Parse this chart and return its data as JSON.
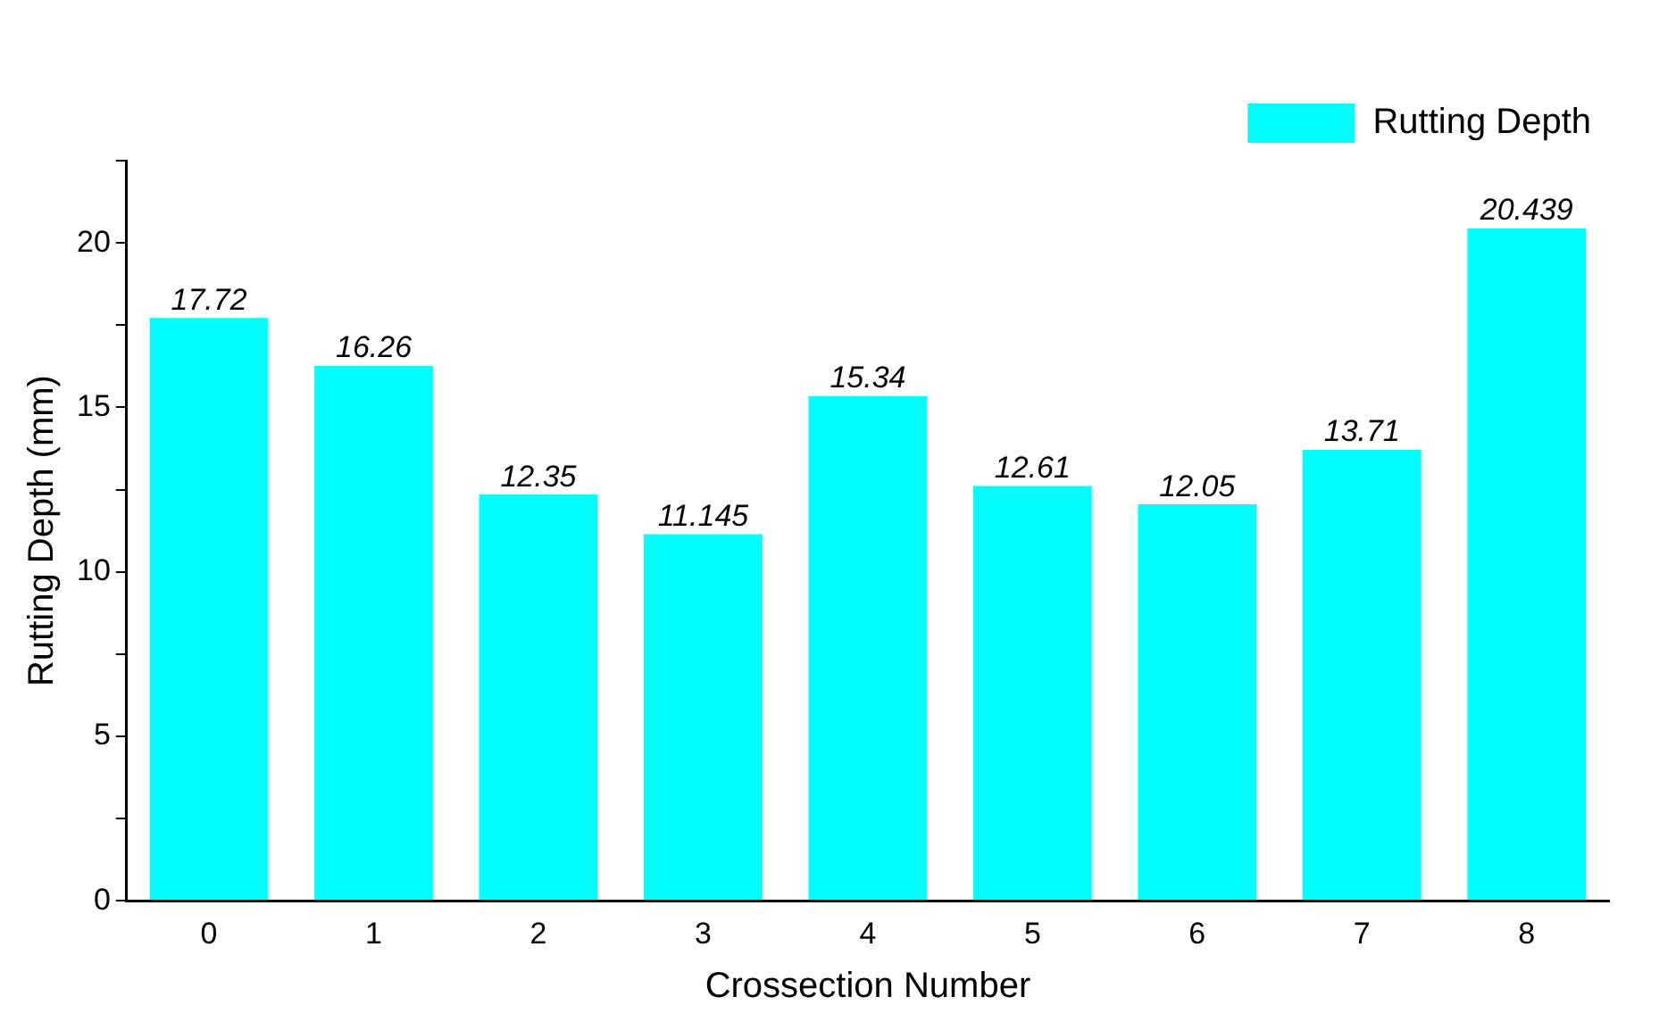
{
  "chart_data": {
    "type": "bar",
    "xlabel": "Crossection Number",
    "ylabel": "Rutting Depth (mm)",
    "categories": [
      "0",
      "1",
      "2",
      "3",
      "4",
      "5",
      "6",
      "7",
      "8"
    ],
    "series": [
      {
        "name": "Rutting Depth",
        "color": "#00ffff",
        "values": [
          17.72,
          16.26,
          12.35,
          11.145,
          15.34,
          12.61,
          12.05,
          13.71,
          20.439
        ]
      }
    ],
    "ylim": [
      0,
      22.5
    ],
    "yticks": [
      0,
      {
        "value": 2.5,
        "label": null
      },
      5,
      {
        "value": 7.5,
        "label": null
      },
      10,
      {
        "value": 12.5,
        "label": null
      },
      15,
      {
        "value": 17.5,
        "label": null
      },
      20,
      {
        "value": 22.5,
        "label": null
      }
    ],
    "data_labels": true,
    "grid": false,
    "legend": "top right"
  }
}
